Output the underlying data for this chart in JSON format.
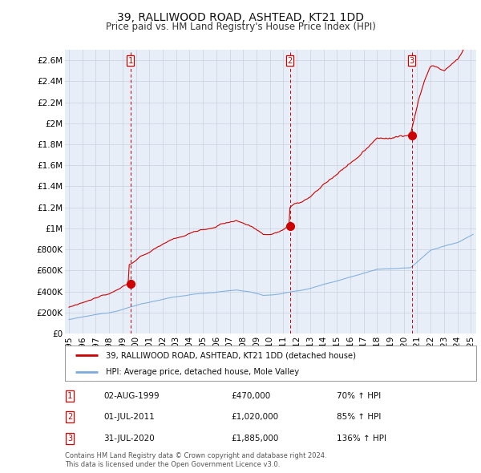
{
  "title": "39, RALLIWOOD ROAD, ASHTEAD, KT21 1DD",
  "subtitle": "Price paid vs. HM Land Registry's House Price Index (HPI)",
  "legend_line1": "39, RALLIWOOD ROAD, ASHTEAD, KT21 1DD (detached house)",
  "legend_line2": "HPI: Average price, detached house, Mole Valley",
  "footer1": "Contains HM Land Registry data © Crown copyright and database right 2024.",
  "footer2": "This data is licensed under the Open Government Licence v3.0.",
  "transactions": [
    {
      "label": "1",
      "date": "02-AUG-1999",
      "price": "£470,000",
      "hpi": "70% ↑ HPI",
      "x_year": 1999.583
    },
    {
      "label": "2",
      "date": "01-JUL-2011",
      "price": "£1,020,000",
      "hpi": "85% ↑ HPI",
      "x_year": 2011.5
    },
    {
      "label": "3",
      "date": "31-JUL-2020",
      "price": "£1,885,000",
      "hpi": "136% ↑ HPI",
      "x_year": 2020.583
    }
  ],
  "transaction_values": [
    470000,
    1020000,
    1885000
  ],
  "ylim": [
    0,
    2700000
  ],
  "yticks": [
    0,
    200000,
    400000,
    600000,
    800000,
    1000000,
    1200000,
    1400000,
    1600000,
    1800000,
    2000000,
    2200000,
    2400000,
    2600000
  ],
  "ytick_labels": [
    "£0",
    "£200K",
    "£400K",
    "£600K",
    "£800K",
    "£1M",
    "£1.2M",
    "£1.4M",
    "£1.6M",
    "£1.8M",
    "£2M",
    "£2.2M",
    "£2.4M",
    "£2.6M"
  ],
  "xlim_start": 1994.7,
  "xlim_end": 2025.4,
  "price_line_color": "#cc0000",
  "hpi_line_color": "#7aabdc",
  "annotation_box_color": "#cc0000",
  "grid_color": "#c8d0e0",
  "background_color": "#ffffff",
  "plot_bg_color": "#e8eef8"
}
